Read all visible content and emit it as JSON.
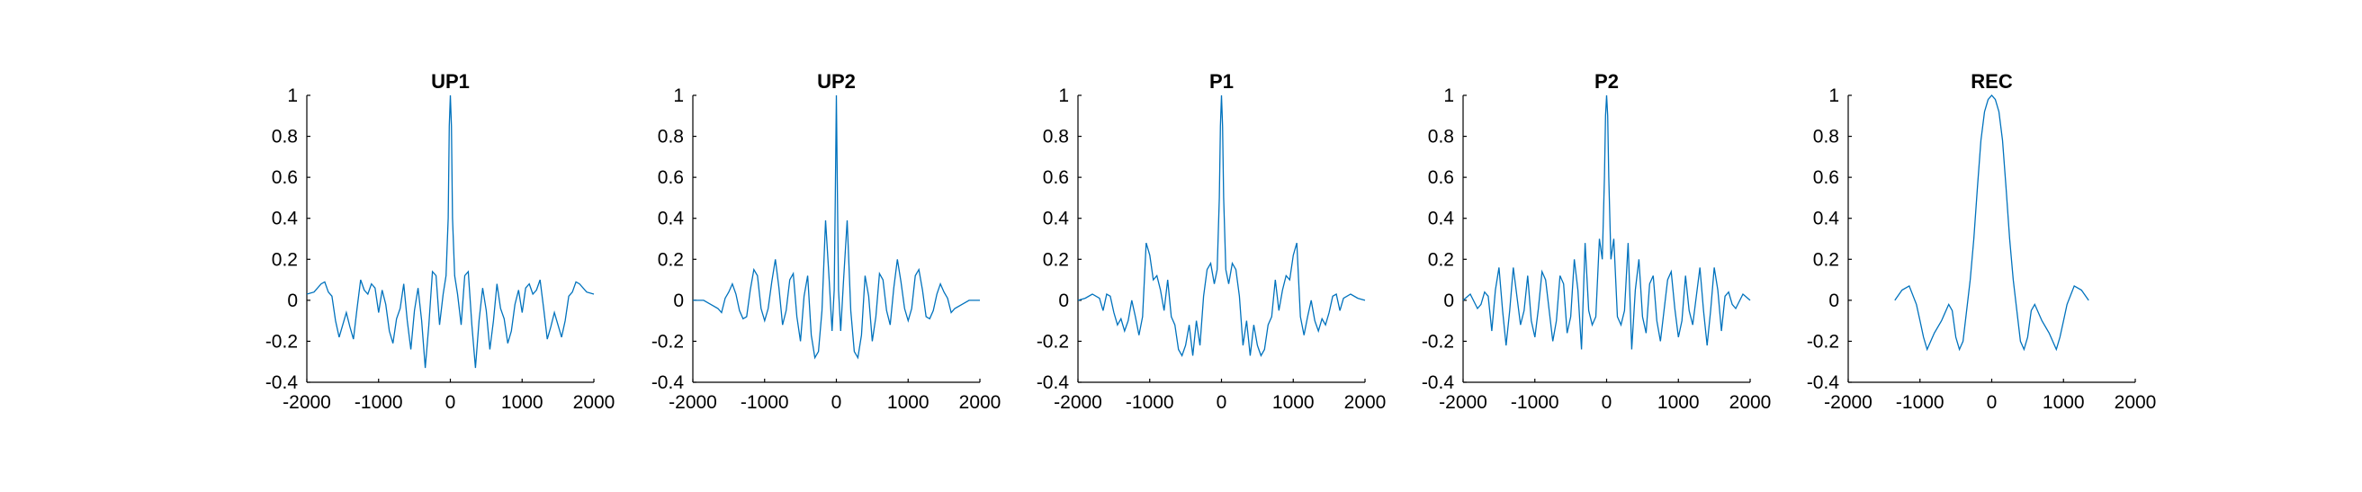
{
  "figure": {
    "background": "#ffffff",
    "line_color": "#0072BD",
    "axis_color": "#000000"
  },
  "chart_data": [
    {
      "type": "line",
      "title": "UP1",
      "xlabel": "",
      "ylabel": "",
      "xlim": [
        -2000,
        2000
      ],
      "ylim": [
        -0.4,
        1
      ],
      "xticks": [
        -2000,
        -1000,
        0,
        1000,
        2000
      ],
      "yticks": [
        -0.4,
        -0.2,
        0,
        0.2,
        0.4,
        0.6,
        0.8,
        1
      ],
      "grid": false,
      "series": [
        {
          "x": [
            -2000,
            -1900,
            -1800,
            -1750,
            -1700,
            -1650,
            -1600,
            -1550,
            -1500,
            -1450,
            -1400,
            -1350,
            -1300,
            -1250,
            -1200,
            -1150,
            -1100,
            -1050,
            -1000,
            -950,
            -900,
            -850,
            -800,
            -750,
            -700,
            -650,
            -600,
            -550,
            -500,
            -450,
            -400,
            -350,
            -300,
            -250,
            -200,
            -150,
            -100,
            -60,
            -30,
            -15,
            0,
            15,
            30,
            60,
            100,
            150,
            200,
            250,
            300,
            350,
            400,
            450,
            500,
            550,
            600,
            650,
            700,
            750,
            800,
            850,
            900,
            950,
            1000,
            1050,
            1100,
            1150,
            1200,
            1250,
            1300,
            1350,
            1400,
            1450,
            1500,
            1550,
            1600,
            1650,
            1700,
            1750,
            1800,
            1900,
            2000
          ],
          "y": [
            0.03,
            0.04,
            0.08,
            0.09,
            0.04,
            0.02,
            -0.1,
            -0.18,
            -0.12,
            -0.06,
            -0.13,
            -0.19,
            -0.04,
            0.1,
            0.05,
            0.03,
            0.08,
            0.06,
            -0.06,
            0.05,
            -0.02,
            -0.15,
            -0.21,
            -0.09,
            -0.04,
            0.08,
            -0.1,
            -0.24,
            -0.05,
            0.06,
            -0.1,
            -0.33,
            -0.12,
            0.14,
            0.12,
            -0.12,
            0.03,
            0.12,
            0.4,
            0.85,
            1,
            0.85,
            0.4,
            0.12,
            0.03,
            -0.12,
            0.12,
            0.14,
            -0.12,
            -0.33,
            -0.1,
            0.06,
            -0.05,
            -0.24,
            -0.1,
            0.08,
            -0.04,
            -0.09,
            -0.21,
            -0.15,
            -0.02,
            0.05,
            -0.06,
            0.06,
            0.08,
            0.03,
            0.05,
            0.1,
            -0.04,
            -0.19,
            -0.13,
            -0.06,
            -0.12,
            -0.18,
            -0.1,
            0.02,
            0.04,
            0.09,
            0.08,
            0.04,
            0.03
          ]
        }
      ]
    },
    {
      "type": "line",
      "title": "UP2",
      "xlabel": "",
      "ylabel": "",
      "xlim": [
        -2000,
        2000
      ],
      "ylim": [
        -0.4,
        1
      ],
      "xticks": [
        -2000,
        -1000,
        0,
        1000,
        2000
      ],
      "yticks": [
        -0.4,
        -0.2,
        0,
        0.2,
        0.4,
        0.6,
        0.8,
        1
      ],
      "grid": false,
      "series": [
        {
          "x": [
            -2000,
            -1850,
            -1750,
            -1650,
            -1600,
            -1550,
            -1500,
            -1450,
            -1400,
            -1350,
            -1300,
            -1250,
            -1200,
            -1150,
            -1100,
            -1050,
            -1000,
            -950,
            -900,
            -850,
            -800,
            -750,
            -700,
            -650,
            -600,
            -550,
            -500,
            -450,
            -400,
            -350,
            -300,
            -250,
            -200,
            -150,
            -100,
            -60,
            -30,
            -15,
            0,
            15,
            30,
            60,
            100,
            150,
            200,
            250,
            300,
            350,
            400,
            450,
            500,
            550,
            600,
            650,
            700,
            750,
            800,
            850,
            900,
            950,
            1000,
            1050,
            1100,
            1150,
            1200,
            1250,
            1300,
            1350,
            1400,
            1450,
            1500,
            1550,
            1600,
            1650,
            1750,
            1850,
            2000
          ],
          "y": [
            0.0,
            0.0,
            -0.02,
            -0.04,
            -0.06,
            0.01,
            0.04,
            0.08,
            0.03,
            -0.05,
            -0.09,
            -0.08,
            0.05,
            0.15,
            0.12,
            -0.04,
            -0.1,
            -0.04,
            0.09,
            0.2,
            0.06,
            -0.12,
            -0.05,
            0.1,
            0.13,
            -0.08,
            -0.2,
            0.02,
            0.12,
            -0.17,
            -0.28,
            -0.25,
            -0.05,
            0.39,
            0.1,
            -0.15,
            0.05,
            0.5,
            1,
            0.5,
            0.05,
            -0.15,
            0.1,
            0.39,
            -0.05,
            -0.25,
            -0.28,
            -0.17,
            0.12,
            0.02,
            -0.2,
            -0.08,
            0.13,
            0.1,
            -0.05,
            -0.12,
            0.06,
            0.2,
            0.09,
            -0.04,
            -0.1,
            -0.04,
            0.12,
            0.15,
            0.05,
            -0.08,
            -0.09,
            -0.05,
            0.03,
            0.08,
            0.04,
            0.01,
            -0.06,
            -0.04,
            -0.02,
            0.0,
            0.0
          ]
        }
      ]
    },
    {
      "type": "line",
      "title": "P1",
      "xlabel": "",
      "ylabel": "",
      "xlim": [
        -2000,
        2000
      ],
      "ylim": [
        -0.4,
        1
      ],
      "xticks": [
        -2000,
        -1000,
        0,
        1000,
        2000
      ],
      "yticks": [
        -0.4,
        -0.2,
        0,
        0.2,
        0.4,
        0.6,
        0.8,
        1
      ],
      "grid": false,
      "series": [
        {
          "x": [
            -2000,
            -1900,
            -1800,
            -1700,
            -1650,
            -1600,
            -1550,
            -1500,
            -1450,
            -1400,
            -1350,
            -1300,
            -1250,
            -1200,
            -1150,
            -1100,
            -1050,
            -1000,
            -950,
            -900,
            -850,
            -800,
            -750,
            -700,
            -650,
            -600,
            -550,
            -500,
            -450,
            -400,
            -350,
            -300,
            -250,
            -200,
            -150,
            -100,
            -60,
            -30,
            -15,
            0,
            15,
            30,
            60,
            100,
            150,
            200,
            250,
            300,
            350,
            400,
            450,
            500,
            550,
            600,
            650,
            700,
            750,
            800,
            850,
            900,
            950,
            1000,
            1050,
            1100,
            1150,
            1200,
            1250,
            1300,
            1350,
            1400,
            1450,
            1500,
            1550,
            1600,
            1650,
            1700,
            1800,
            1900,
            2000
          ],
          "y": [
            0.0,
            0.01,
            0.03,
            0.01,
            -0.05,
            0.03,
            0.02,
            -0.06,
            -0.12,
            -0.09,
            -0.15,
            -0.1,
            0.0,
            -0.08,
            -0.17,
            -0.08,
            0.28,
            0.22,
            0.1,
            0.12,
            0.05,
            -0.05,
            0.1,
            -0.08,
            -0.12,
            -0.24,
            -0.27,
            -0.22,
            -0.12,
            -0.27,
            -0.1,
            -0.22,
            0.02,
            0.15,
            0.18,
            0.08,
            0.15,
            0.5,
            0.85,
            1,
            0.85,
            0.5,
            0.15,
            0.08,
            0.18,
            0.15,
            0.02,
            -0.22,
            -0.1,
            -0.27,
            -0.12,
            -0.22,
            -0.27,
            -0.24,
            -0.12,
            -0.08,
            0.1,
            -0.05,
            0.05,
            0.12,
            0.1,
            0.22,
            0.28,
            -0.08,
            -0.17,
            -0.08,
            0.0,
            -0.1,
            -0.15,
            -0.09,
            -0.12,
            -0.06,
            0.02,
            0.03,
            -0.05,
            0.01,
            0.03,
            0.01,
            0.0
          ]
        }
      ]
    },
    {
      "type": "line",
      "title": "P2",
      "xlabel": "",
      "ylabel": "",
      "xlim": [
        -2000,
        2000
      ],
      "ylim": [
        -0.4,
        1
      ],
      "xticks": [
        -2000,
        -1000,
        0,
        1000,
        2000
      ],
      "yticks": [
        -0.4,
        -0.2,
        0,
        0.2,
        0.4,
        0.6,
        0.8,
        1
      ],
      "grid": false,
      "series": [
        {
          "x": [
            -2000,
            -1900,
            -1800,
            -1750,
            -1700,
            -1650,
            -1600,
            -1550,
            -1500,
            -1450,
            -1400,
            -1350,
            -1300,
            -1250,
            -1200,
            -1150,
            -1100,
            -1050,
            -1000,
            -950,
            -900,
            -850,
            -800,
            -750,
            -700,
            -650,
            -600,
            -550,
            -500,
            -450,
            -400,
            -350,
            -300,
            -250,
            -200,
            -150,
            -100,
            -60,
            -30,
            -15,
            0,
            15,
            30,
            60,
            100,
            150,
            200,
            250,
            300,
            350,
            400,
            450,
            500,
            550,
            600,
            650,
            700,
            750,
            800,
            850,
            900,
            950,
            1000,
            1050,
            1100,
            1150,
            1200,
            1250,
            1300,
            1350,
            1400,
            1450,
            1500,
            1550,
            1600,
            1650,
            1700,
            1750,
            1800,
            1900,
            2000
          ],
          "y": [
            0.0,
            0.03,
            -0.04,
            -0.02,
            0.04,
            0.02,
            -0.15,
            0.05,
            0.16,
            -0.05,
            -0.22,
            -0.05,
            0.16,
            0.02,
            -0.12,
            -0.05,
            0.12,
            -0.1,
            -0.18,
            -0.04,
            0.14,
            0.1,
            -0.05,
            -0.2,
            -0.1,
            0.12,
            0.08,
            -0.16,
            -0.08,
            0.2,
            0.05,
            -0.24,
            0.28,
            -0.05,
            -0.12,
            -0.08,
            0.3,
            0.2,
            0.6,
            0.9,
            1,
            0.9,
            0.6,
            0.2,
            0.3,
            -0.08,
            -0.12,
            -0.05,
            0.28,
            -0.24,
            0.05,
            0.2,
            -0.08,
            -0.16,
            0.08,
            0.12,
            -0.1,
            -0.2,
            -0.05,
            0.1,
            0.14,
            -0.04,
            -0.18,
            -0.1,
            0.12,
            -0.05,
            -0.12,
            0.02,
            0.16,
            -0.05,
            -0.22,
            -0.05,
            0.16,
            0.05,
            -0.15,
            0.02,
            0.04,
            -0.02,
            -0.04,
            0.03,
            0.0
          ]
        }
      ]
    },
    {
      "type": "line",
      "title": "REC",
      "xlabel": "",
      "ylabel": "",
      "xlim": [
        -2000,
        2000
      ],
      "ylim": [
        -0.4,
        1
      ],
      "xticks": [
        -2000,
        -1000,
        0,
        1000,
        2000
      ],
      "yticks": [
        -0.4,
        -0.2,
        0,
        0.2,
        0.4,
        0.6,
        0.8,
        1
      ],
      "grid": false,
      "series": [
        {
          "x": [
            -1350,
            -1250,
            -1150,
            -1050,
            -1000,
            -950,
            -900,
            -850,
            -800,
            -700,
            -600,
            -550,
            -500,
            -450,
            -400,
            -350,
            -300,
            -250,
            -200,
            -150,
            -100,
            -50,
            0,
            50,
            100,
            150,
            200,
            250,
            300,
            350,
            400,
            450,
            500,
            550,
            600,
            700,
            800,
            850,
            900,
            950,
            1000,
            1050,
            1150,
            1250,
            1350
          ],
          "y": [
            0.0,
            0.05,
            0.07,
            -0.02,
            -0.1,
            -0.18,
            -0.24,
            -0.2,
            -0.16,
            -0.1,
            -0.02,
            -0.05,
            -0.18,
            -0.24,
            -0.2,
            -0.05,
            0.1,
            0.3,
            0.55,
            0.78,
            0.92,
            0.98,
            1,
            0.98,
            0.92,
            0.78,
            0.55,
            0.3,
            0.1,
            -0.05,
            -0.2,
            -0.24,
            -0.18,
            -0.05,
            -0.02,
            -0.1,
            -0.16,
            -0.2,
            -0.24,
            -0.18,
            -0.1,
            -0.02,
            0.07,
            0.05,
            0.0
          ]
        }
      ]
    }
  ]
}
